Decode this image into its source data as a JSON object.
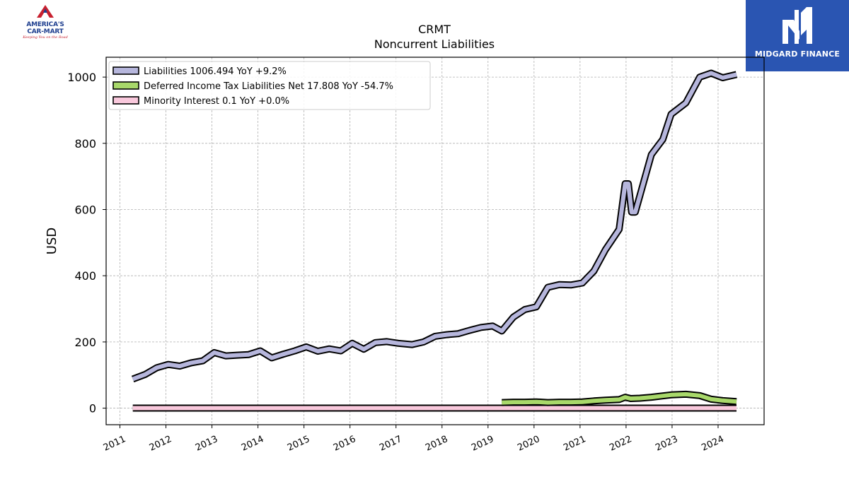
{
  "logos": {
    "left": {
      "line1": "AMERICA'S",
      "line2": "CAR-MART",
      "tagline": "Keeping You on the Road"
    },
    "right": {
      "brand": "MIDGARD FINANCE"
    }
  },
  "chart_data": {
    "type": "line",
    "title": "CRMT",
    "subtitle": "Noncurrent  Liabilities",
    "xlabel": "",
    "ylabel": "USD",
    "xlim": [
      2010.7,
      2025.0
    ],
    "ylim": [
      -50,
      1060
    ],
    "x_ticks": [
      "2011",
      "2012",
      "2013",
      "2014",
      "2015",
      "2016",
      "2017",
      "2018",
      "2019",
      "2020",
      "2021",
      "2022",
      "2023",
      "2024"
    ],
    "y_ticks": [
      0,
      200,
      400,
      600,
      800,
      1000
    ],
    "grid": true,
    "legend_position": "top-left",
    "colors": {
      "liabilities": "#b6b6dc",
      "deferred": "#a8d86a",
      "minority": "#f9c8dc",
      "outline": "#000000",
      "grid": "#b0b0b0"
    },
    "series": [
      {
        "name": "Liabilities",
        "legend": "Liabilities  1006.494 YoY +9.2%",
        "color": "#b6b6dc",
        "points": [
          [
            2011.28,
            88
          ],
          [
            2011.55,
            102
          ],
          [
            2011.8,
            122
          ],
          [
            2012.05,
            132
          ],
          [
            2012.3,
            127
          ],
          [
            2012.55,
            137
          ],
          [
            2012.8,
            143
          ],
          [
            2013.05,
            168
          ],
          [
            2013.3,
            158
          ],
          [
            2013.55,
            160
          ],
          [
            2013.8,
            162
          ],
          [
            2014.05,
            173
          ],
          [
            2014.3,
            152
          ],
          [
            2014.55,
            163
          ],
          [
            2014.8,
            173
          ],
          [
            2015.05,
            185
          ],
          [
            2015.3,
            172
          ],
          [
            2015.55,
            179
          ],
          [
            2015.8,
            173
          ],
          [
            2016.05,
            196
          ],
          [
            2016.3,
            178
          ],
          [
            2016.55,
            198
          ],
          [
            2016.8,
            201
          ],
          [
            2017.05,
            196
          ],
          [
            2017.35,
            192
          ],
          [
            2017.6,
            200
          ],
          [
            2017.85,
            217
          ],
          [
            2018.1,
            222
          ],
          [
            2018.35,
            225
          ],
          [
            2018.6,
            235
          ],
          [
            2018.85,
            244
          ],
          [
            2019.1,
            248
          ],
          [
            2019.3,
            233
          ],
          [
            2019.55,
            275
          ],
          [
            2019.8,
            298
          ],
          [
            2020.05,
            306
          ],
          [
            2020.3,
            365
          ],
          [
            2020.55,
            373
          ],
          [
            2020.8,
            372
          ],
          [
            2021.05,
            378
          ],
          [
            2021.3,
            414
          ],
          [
            2021.55,
            478
          ],
          [
            2021.85,
            540
          ],
          [
            2021.98,
            678
          ],
          [
            2022.05,
            678
          ],
          [
            2022.12,
            592
          ],
          [
            2022.2,
            592
          ],
          [
            2022.55,
            766
          ],
          [
            2022.8,
            812
          ],
          [
            2022.98,
            888
          ],
          [
            2023.3,
            922
          ],
          [
            2023.6,
            1000
          ],
          [
            2023.85,
            1012
          ],
          [
            2024.1,
            998
          ],
          [
            2024.4,
            1008
          ]
        ]
      },
      {
        "name": "Deferred Income Tax Liabilities Net",
        "legend": "Deferred Income Tax Liabilities Net  17.808 YoY -54.7%",
        "color": "#a8d86a",
        "points": [
          [
            2019.3,
            17
          ],
          [
            2019.55,
            18
          ],
          [
            2019.8,
            18
          ],
          [
            2020.05,
            19
          ],
          [
            2020.3,
            17
          ],
          [
            2020.55,
            18
          ],
          [
            2020.8,
            18
          ],
          [
            2021.05,
            19
          ],
          [
            2021.3,
            22
          ],
          [
            2021.55,
            24
          ],
          [
            2021.85,
            26
          ],
          [
            2021.98,
            33
          ],
          [
            2022.1,
            29
          ],
          [
            2022.3,
            30
          ],
          [
            2022.55,
            33
          ],
          [
            2022.8,
            37
          ],
          [
            2022.98,
            40
          ],
          [
            2023.3,
            42
          ],
          [
            2023.6,
            38
          ],
          [
            2023.85,
            27
          ],
          [
            2024.1,
            23
          ],
          [
            2024.4,
            20
          ]
        ]
      },
      {
        "name": "Minority Interest",
        "legend": "Minority Interest  0.1 YoY +0.0%",
        "color": "#f9c8dc",
        "points": [
          [
            2011.28,
            0.1
          ],
          [
            2024.4,
            0.1
          ]
        ]
      }
    ]
  }
}
